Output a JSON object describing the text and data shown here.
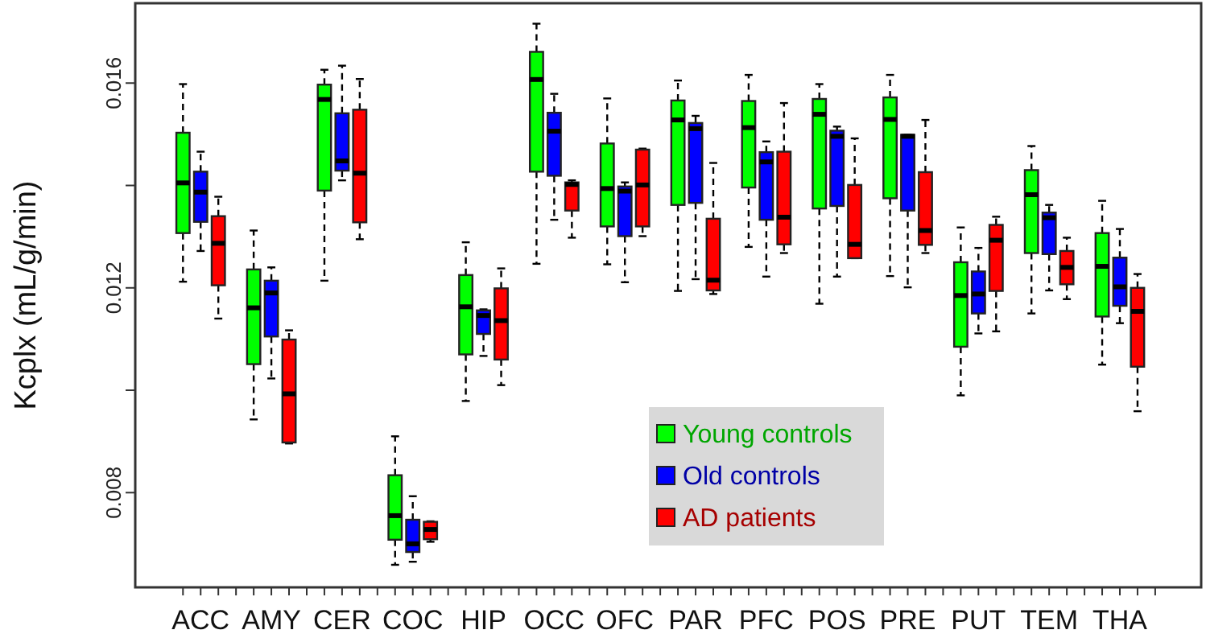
{
  "chart_data": {
    "type": "box",
    "ylabel": "Kcplx (mL/g/min)",
    "categories": [
      "ACC",
      "AMY",
      "CER",
      "COC",
      "HIP",
      "OCC",
      "OFC",
      "PAR",
      "PFC",
      "POS",
      "PRE",
      "PUT",
      "TEM",
      "THA"
    ],
    "ylim": [
      0.00615,
      0.01756
    ],
    "yticks": [
      0.008,
      {
        "value": 0.01,
        "label": null
      },
      0.012,
      {
        "value": 0.014,
        "label": null
      },
      0.016
    ],
    "legend": "bottom",
    "line_style": "dashed",
    "series": [
      {
        "name": "Young controls",
        "color": "#00ff00",
        "boxes": [
          {
            "low": 0.01212,
            "q1": 0.01307,
            "median": 0.01405,
            "q3": 0.01503,
            "high": 0.01598
          },
          {
            "low": 0.00943,
            "q1": 0.01051,
            "median": 0.01161,
            "q3": 0.01236,
            "high": 0.01312
          },
          {
            "low": 0.01214,
            "q1": 0.0139,
            "median": 0.01568,
            "q3": 0.01597,
            "high": 0.01626
          },
          {
            "low": 0.00659,
            "q1": 0.00708,
            "median": 0.00755,
            "q3": 0.00834,
            "high": 0.0091
          },
          {
            "low": 0.00979,
            "q1": 0.0107,
            "median": 0.01163,
            "q3": 0.01225,
            "high": 0.01289
          },
          {
            "low": 0.01247,
            "q1": 0.01427,
            "median": 0.01607,
            "q3": 0.01661,
            "high": 0.01716
          },
          {
            "low": 0.01246,
            "q1": 0.0132,
            "median": 0.01394,
            "q3": 0.01482,
            "high": 0.0157
          },
          {
            "low": 0.01194,
            "q1": 0.01362,
            "median": 0.01528,
            "q3": 0.01566,
            "high": 0.01605
          },
          {
            "low": 0.0128,
            "q1": 0.01396,
            "median": 0.01513,
            "q3": 0.01565,
            "high": 0.01616
          },
          {
            "low": 0.01169,
            "q1": 0.01355,
            "median": 0.01539,
            "q3": 0.01569,
            "high": 0.01598
          },
          {
            "low": 0.01223,
            "q1": 0.01375,
            "median": 0.01529,
            "q3": 0.01572,
            "high": 0.01616
          },
          {
            "low": 0.0099,
            "q1": 0.01085,
            "median": 0.01185,
            "q3": 0.0125,
            "high": 0.01318
          },
          {
            "low": 0.0115,
            "q1": 0.01268,
            "median": 0.01382,
            "q3": 0.0143,
            "high": 0.01477
          },
          {
            "low": 0.0105,
            "q1": 0.01144,
            "median": 0.01242,
            "q3": 0.01307,
            "high": 0.0137
          }
        ]
      },
      {
        "name": "Old controls",
        "color": "#0000ff",
        "boxes": [
          {
            "low": 0.01272,
            "q1": 0.01329,
            "median": 0.01387,
            "q3": 0.01427,
            "high": 0.01466
          },
          {
            "low": 0.01023,
            "q1": 0.01105,
            "median": 0.0119,
            "q3": 0.01214,
            "high": 0.0124
          },
          {
            "low": 0.0141,
            "q1": 0.01429,
            "median": 0.01448,
            "q3": 0.01541,
            "high": 0.01634
          },
          {
            "low": 0.00665,
            "q1": 0.00684,
            "median": 0.007,
            "q3": 0.00747,
            "high": 0.00793
          },
          {
            "low": 0.01067,
            "q1": 0.0111,
            "median": 0.01146,
            "q3": 0.01156,
            "high": 0.01158
          },
          {
            "low": 0.01333,
            "q1": 0.01419,
            "median": 0.01506,
            "q3": 0.01542,
            "high": 0.01579
          },
          {
            "low": 0.01211,
            "q1": 0.01301,
            "median": 0.01389,
            "q3": 0.01398,
            "high": 0.01406
          },
          {
            "low": 0.01217,
            "q1": 0.01366,
            "median": 0.01511,
            "q3": 0.01522,
            "high": 0.01536
          },
          {
            "low": 0.01222,
            "q1": 0.01333,
            "median": 0.01446,
            "q3": 0.01465,
            "high": 0.01486
          },
          {
            "low": 0.01222,
            "q1": 0.0136,
            "median": 0.01496,
            "q3": 0.01507,
            "high": 0.01515
          },
          {
            "low": 0.01201,
            "q1": 0.01351,
            "median": 0.01496,
            "q3": 0.01499,
            "high": 0.01499
          },
          {
            "low": 0.01111,
            "q1": 0.0115,
            "median": 0.01188,
            "q3": 0.01232,
            "high": 0.01278
          },
          {
            "low": 0.01195,
            "q1": 0.01266,
            "median": 0.01337,
            "q3": 0.01347,
            "high": 0.01362
          },
          {
            "low": 0.01131,
            "q1": 0.01165,
            "median": 0.01202,
            "q3": 0.01259,
            "high": 0.01315
          }
        ]
      },
      {
        "name": "AD patients",
        "color": "#ff0000",
        "boxes": [
          {
            "low": 0.0114,
            "q1": 0.01205,
            "median": 0.01287,
            "q3": 0.0134,
            "high": 0.01378
          },
          {
            "low": 0.00896,
            "q1": 0.00898,
            "median": 0.00993,
            "q3": 0.01099,
            "high": 0.01117
          },
          {
            "low": 0.01295,
            "q1": 0.01328,
            "median": 0.01424,
            "q3": 0.01548,
            "high": 0.01608
          },
          {
            "low": 0.00704,
            "q1": 0.00709,
            "median": 0.00728,
            "q3": 0.00743,
            "high": 0.00744
          },
          {
            "low": 0.0101,
            "q1": 0.0106,
            "median": 0.01136,
            "q3": 0.01199,
            "high": 0.01238
          },
          {
            "low": 0.01298,
            "q1": 0.01351,
            "median": 0.01402,
            "q3": 0.01406,
            "high": 0.0141
          },
          {
            "low": 0.01301,
            "q1": 0.0132,
            "median": 0.01401,
            "q3": 0.0147,
            "high": 0.01472
          },
          {
            "low": 0.01188,
            "q1": 0.01195,
            "median": 0.01215,
            "q3": 0.01335,
            "high": 0.01444
          },
          {
            "low": 0.01268,
            "q1": 0.01285,
            "median": 0.01338,
            "q3": 0.01466,
            "high": 0.01561
          },
          {
            "low": 0.01258,
            "q1": 0.01258,
            "median": 0.01285,
            "q3": 0.01401,
            "high": 0.01492
          },
          {
            "low": 0.01268,
            "q1": 0.01284,
            "median": 0.01312,
            "q3": 0.01426,
            "high": 0.01528
          },
          {
            "low": 0.01115,
            "q1": 0.01194,
            "median": 0.01293,
            "q3": 0.01323,
            "high": 0.01339
          },
          {
            "low": 0.01178,
            "q1": 0.01207,
            "median": 0.0124,
            "q3": 0.01272,
            "high": 0.01298
          },
          {
            "low": 0.00959,
            "q1": 0.01046,
            "median": 0.01154,
            "q3": 0.012,
            "high": 0.01227
          }
        ]
      }
    ]
  }
}
